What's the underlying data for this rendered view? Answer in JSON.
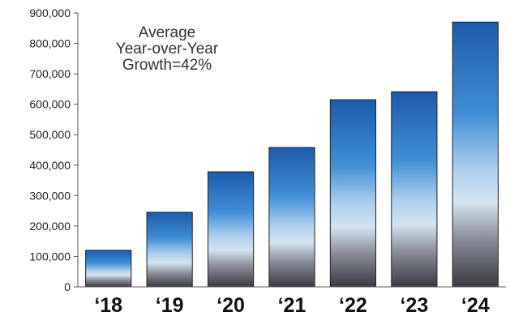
{
  "chart_data": {
    "type": "bar",
    "categories": [
      "‘18",
      "‘19",
      "‘20",
      "‘21",
      "‘22",
      "‘23",
      "‘24"
    ],
    "values": [
      120000,
      245000,
      378000,
      458000,
      615000,
      641000,
      870000
    ],
    "ylim": [
      0,
      900000
    ],
    "yticks": [
      0,
      100000,
      200000,
      300000,
      400000,
      500000,
      600000,
      700000,
      800000,
      900000
    ],
    "ytick_labels": [
      "0",
      "100,000",
      "200,000",
      "300,000",
      "400,000",
      "500,000",
      "600,000",
      "700,000",
      "800,000",
      "900,000"
    ],
    "title": "",
    "xlabel": "",
    "ylabel": "",
    "grid": false,
    "annotation": {
      "lines": [
        "Average",
        "Year-over-Year",
        "Growth=42%"
      ]
    },
    "colors": {
      "bar_top": "#1f5fb0",
      "bar_mid": "#bcd6ee",
      "bar_bottom": "#3a3a3e",
      "axis": "#555555",
      "bar_stroke": "#222222"
    }
  }
}
